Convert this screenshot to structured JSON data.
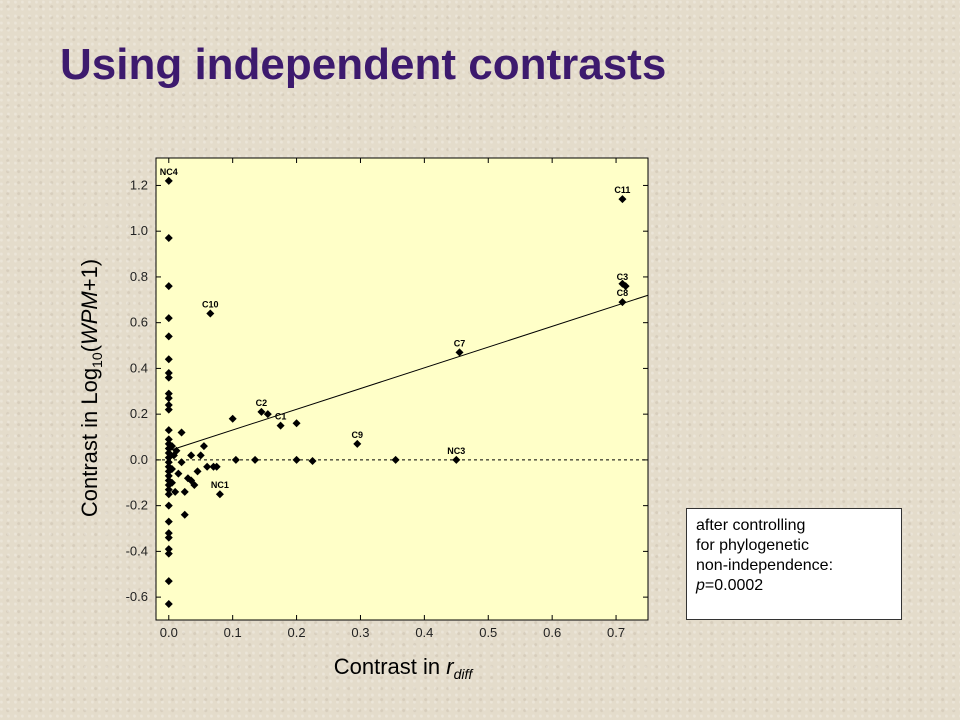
{
  "title": "Using independent contrasts",
  "note": {
    "line1": "after controlling",
    "line2": "for phylogenetic",
    "line3": "non-independence:",
    "p_symbol": "p",
    "p_value": "=0.0002"
  },
  "chart_data": {
    "type": "scatter",
    "xlabel": {
      "prefix": "Contrast in ",
      "var": "r",
      "sub": "diff"
    },
    "ylabel": {
      "prefix": "Contrast in Log",
      "sub": "10",
      "open": "(",
      "var": "WPM",
      "suffix": "+1)"
    },
    "xlim": [
      -0.02,
      0.75
    ],
    "ylim": [
      -0.7,
      1.32
    ],
    "xticks": [
      0.0,
      0.1,
      0.2,
      0.3,
      0.4,
      0.5,
      0.6,
      0.7
    ],
    "xtick_labels": [
      "0.0",
      "0.1",
      "0.2",
      "0.3",
      "0.4",
      "0.5",
      "0.6",
      "0.7"
    ],
    "yticks": [
      -0.6,
      -0.4,
      -0.2,
      0.0,
      0.2,
      0.4,
      0.6,
      0.8,
      1.0,
      1.2
    ],
    "ytick_labels": [
      "-0.6",
      "-0.4",
      "-0.2",
      "0.0",
      "0.2",
      "0.4",
      "0.6",
      "0.8",
      "1.0",
      "1.2"
    ],
    "regression_line": {
      "x": [
        0.0,
        0.75
      ],
      "y": [
        0.04,
        0.72
      ]
    },
    "zero_line": {
      "y": 0.0,
      "style": "dashed"
    },
    "colors": {
      "plot_bg": "#ffffc8",
      "marker": "#000000",
      "title": "#3d1a6e"
    },
    "labeled_points": [
      {
        "label": "NC4",
        "x": 0.0,
        "y": 1.22
      },
      {
        "label": "C11",
        "x": 0.71,
        "y": 1.14
      },
      {
        "label": "C3",
        "x": 0.71,
        "y": 0.76
      },
      {
        "label": "C8",
        "x": 0.71,
        "y": 0.69
      },
      {
        "label": "C10",
        "x": 0.065,
        "y": 0.64
      },
      {
        "label": "C7",
        "x": 0.455,
        "y": 0.47
      },
      {
        "label": "C2",
        "x": 0.145,
        "y": 0.21
      },
      {
        "label": "C1",
        "x": 0.175,
        "y": 0.15
      },
      {
        "label": "C9",
        "x": 0.295,
        "y": 0.07
      },
      {
        "label": "NC3",
        "x": 0.45,
        "y": 0.0
      },
      {
        "label": "NC1",
        "x": 0.08,
        "y": -0.15
      }
    ],
    "points": [
      {
        "x": 0.0,
        "y": 1.22
      },
      {
        "x": 0.0,
        "y": 0.97
      },
      {
        "x": 0.0,
        "y": 0.76
      },
      {
        "x": 0.0,
        "y": 0.62
      },
      {
        "x": 0.0,
        "y": 0.54
      },
      {
        "x": 0.0,
        "y": 0.44
      },
      {
        "x": 0.0,
        "y": 0.38
      },
      {
        "x": 0.0,
        "y": 0.36
      },
      {
        "x": 0.0,
        "y": 0.29
      },
      {
        "x": 0.0,
        "y": 0.27
      },
      {
        "x": 0.0,
        "y": 0.24
      },
      {
        "x": 0.0,
        "y": 0.22
      },
      {
        "x": 0.0,
        "y": 0.13
      },
      {
        "x": 0.0,
        "y": 0.09
      },
      {
        "x": 0.0,
        "y": 0.07
      },
      {
        "x": 0.0,
        "y": 0.05
      },
      {
        "x": 0.0,
        "y": 0.03
      },
      {
        "x": 0.0,
        "y": 0.01
      },
      {
        "x": 0.0,
        "y": -0.01
      },
      {
        "x": 0.0,
        "y": -0.03
      },
      {
        "x": 0.0,
        "y": -0.05
      },
      {
        "x": 0.0,
        "y": -0.07
      },
      {
        "x": 0.0,
        "y": -0.09
      },
      {
        "x": 0.0,
        "y": -0.11
      },
      {
        "x": 0.0,
        "y": -0.13
      },
      {
        "x": 0.0,
        "y": -0.15
      },
      {
        "x": 0.0,
        "y": -0.2
      },
      {
        "x": 0.0,
        "y": -0.27
      },
      {
        "x": 0.0,
        "y": -0.32
      },
      {
        "x": 0.0,
        "y": -0.34
      },
      {
        "x": 0.0,
        "y": -0.39
      },
      {
        "x": 0.0,
        "y": -0.41
      },
      {
        "x": 0.0,
        "y": -0.53
      },
      {
        "x": 0.0,
        "y": -0.63
      },
      {
        "x": 0.005,
        "y": 0.06
      },
      {
        "x": 0.005,
        "y": -0.04
      },
      {
        "x": 0.005,
        "y": -0.1
      },
      {
        "x": 0.008,
        "y": 0.02
      },
      {
        "x": 0.01,
        "y": -0.14
      },
      {
        "x": 0.012,
        "y": 0.04
      },
      {
        "x": 0.015,
        "y": -0.06
      },
      {
        "x": 0.02,
        "y": 0.12
      },
      {
        "x": 0.02,
        "y": -0.01
      },
      {
        "x": 0.025,
        "y": -0.14
      },
      {
        "x": 0.025,
        "y": -0.24
      },
      {
        "x": 0.03,
        "y": -0.08
      },
      {
        "x": 0.035,
        "y": -0.09
      },
      {
        "x": 0.035,
        "y": 0.02
      },
      {
        "x": 0.04,
        "y": -0.11
      },
      {
        "x": 0.045,
        "y": -0.05
      },
      {
        "x": 0.05,
        "y": 0.02
      },
      {
        "x": 0.055,
        "y": 0.06
      },
      {
        "x": 0.06,
        "y": -0.03
      },
      {
        "x": 0.065,
        "y": 0.64
      },
      {
        "x": 0.07,
        "y": -0.03
      },
      {
        "x": 0.075,
        "y": -0.03
      },
      {
        "x": 0.08,
        "y": -0.15
      },
      {
        "x": 0.1,
        "y": 0.18
      },
      {
        "x": 0.105,
        "y": 0.0
      },
      {
        "x": 0.135,
        "y": 0.0
      },
      {
        "x": 0.145,
        "y": 0.21
      },
      {
        "x": 0.155,
        "y": 0.2
      },
      {
        "x": 0.175,
        "y": 0.15
      },
      {
        "x": 0.2,
        "y": 0.16
      },
      {
        "x": 0.2,
        "y": 0.0
      },
      {
        "x": 0.225,
        "y": -0.005
      },
      {
        "x": 0.295,
        "y": 0.07
      },
      {
        "x": 0.355,
        "y": 0.0
      },
      {
        "x": 0.45,
        "y": 0.0
      },
      {
        "x": 0.455,
        "y": 0.47
      },
      {
        "x": 0.71,
        "y": 1.14
      },
      {
        "x": 0.71,
        "y": 0.77
      },
      {
        "x": 0.715,
        "y": 0.76
      },
      {
        "x": 0.71,
        "y": 0.69
      }
    ]
  }
}
